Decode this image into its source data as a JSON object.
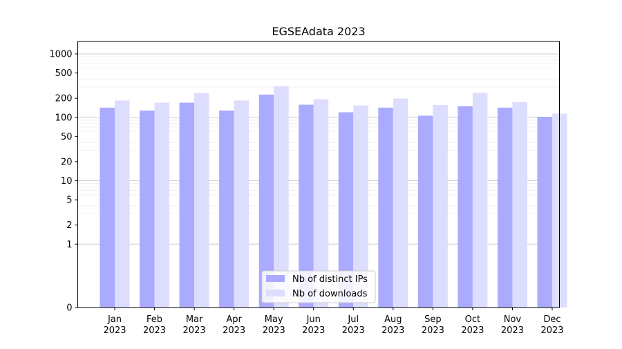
{
  "chart_data": {
    "type": "bar",
    "title": "EGSEAdata 2023",
    "xlabel": "",
    "ylabel": "",
    "categories": [
      [
        "Jan",
        "2023"
      ],
      [
        "Feb",
        "2023"
      ],
      [
        "Mar",
        "2023"
      ],
      [
        "Apr",
        "2023"
      ],
      [
        "May",
        "2023"
      ],
      [
        "Jun",
        "2023"
      ],
      [
        "Jul",
        "2023"
      ],
      [
        "Aug",
        "2023"
      ],
      [
        "Sep",
        "2023"
      ],
      [
        "Oct",
        "2023"
      ],
      [
        "Nov",
        "2023"
      ],
      [
        "Dec",
        "2023"
      ]
    ],
    "series": [
      {
        "name": "Nb of distinct IPs",
        "color": "#aaaaff",
        "values": [
          142,
          128,
          170,
          128,
          228,
          158,
          120,
          142,
          106,
          150,
          142,
          102
        ]
      },
      {
        "name": "Nb of downloads",
        "color": "#ddddff",
        "values": [
          184,
          170,
          240,
          184,
          310,
          192,
          154,
          198,
          156,
          244,
          174,
          114
        ]
      }
    ],
    "y_scale": "symlog",
    "ylim": [
      0,
      1400
    ],
    "y_ticks": [
      0,
      1,
      2,
      5,
      10,
      20,
      50,
      100,
      200,
      500,
      1000
    ],
    "y_tick_labels": [
      "0",
      "1",
      "2",
      "5",
      "10",
      "20",
      "50",
      "100",
      "200",
      "500",
      "1000"
    ],
    "grid": "horizontal major and minor",
    "legend_position": "bottom-center"
  }
}
